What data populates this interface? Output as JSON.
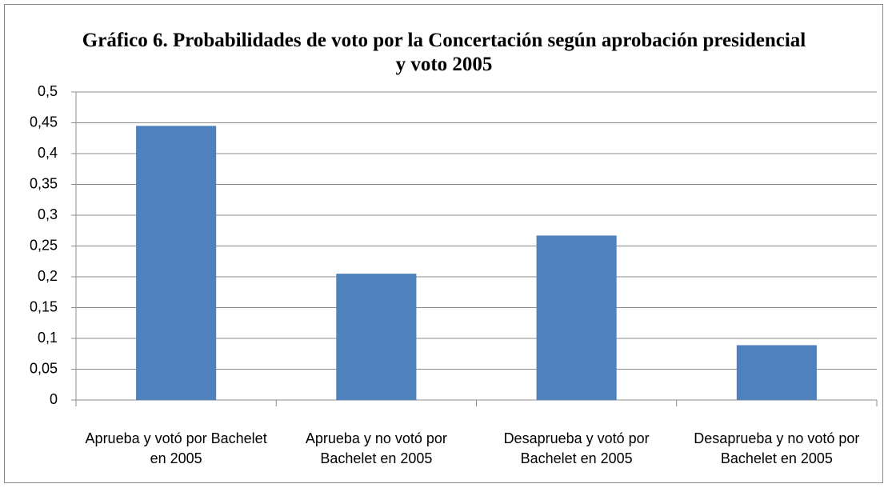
{
  "chart_data": {
    "type": "bar",
    "title": "Gráfico 6. Probabilidades de voto por la Concertación según aprobación presidencial y voto 2005",
    "categories": [
      "Aprueba y votó por Bachelet en 2005",
      "Aprueba y no votó por Bachelet en 2005",
      "Desaprueba y votó por Bachelet en 2005",
      "Desaprueba y no votó por Bachelet en 2005"
    ],
    "values": [
      0.445,
      0.205,
      0.267,
      0.089
    ],
    "color": "#4f81bd",
    "ylim": [
      0,
      0.5
    ],
    "yticks": [
      0,
      {
        "value": 0.05,
        "label": "0,05"
      },
      {
        "value": 0.1,
        "label": "0,1"
      },
      {
        "value": 0.15,
        "label": "0,15"
      },
      {
        "value": 0.2,
        "label": "0,2"
      },
      {
        "value": 0.25,
        "label": "0,25"
      },
      {
        "value": 0.3,
        "label": "0,3"
      },
      {
        "value": 0.35,
        "label": "0,35"
      },
      {
        "value": 0.4,
        "label": "0,4"
      },
      {
        "value": 0.45,
        "label": "0,45"
      },
      {
        "value": 0.5,
        "label": "0,5"
      }
    ],
    "grid": true
  }
}
